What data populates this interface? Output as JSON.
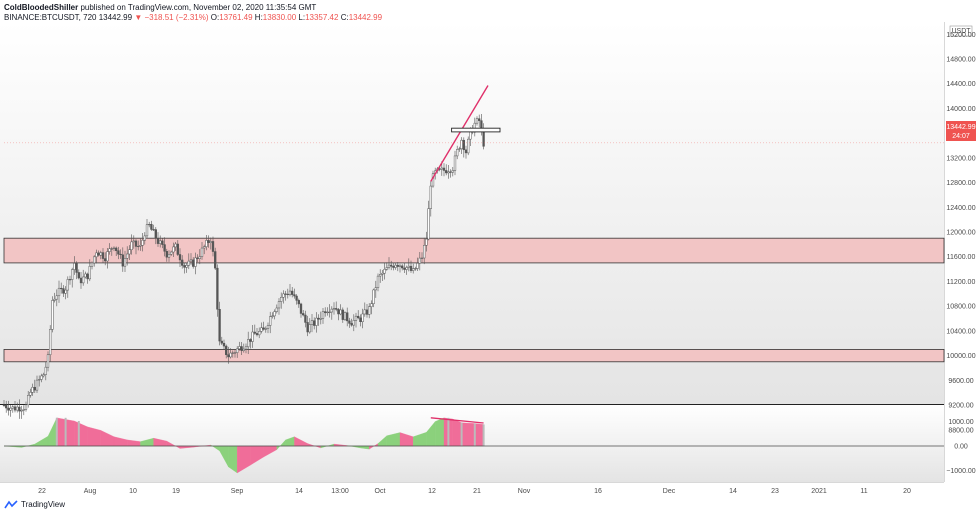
{
  "header": {
    "author": "ColdBloodedShiller",
    "published": " published on TradingView.com, November 02, 2020 11:35:54 GMT",
    "symbol": "BINANCE:BTCUSDT, 720",
    "last": "13442.99",
    "change": "▼ −318.51 (−2.31%)",
    "o_label": "O:",
    "o_value": "13761.49",
    "h_label": "H:",
    "h_value": "13830.00",
    "l_label": "L:",
    "l_value": "13357.42",
    "c_label": "C:",
    "c_value": "13442.99"
  },
  "footer": {
    "brand": "TradingView"
  },
  "colors": {
    "candle": "#555555",
    "zone_fill": "#f2c5c5",
    "zone_border": "#333333",
    "trendline": "#e0306a",
    "osc_green": "#8bd17c",
    "osc_pink": "#f06d99",
    "price_tag_bg": "#ef5350"
  },
  "chart_data": [
    {
      "type": "candlestick",
      "symbol": "BINANCE:BTCUSDT",
      "interval": "720",
      "y_unit": "USDT",
      "y_ticks": [
        "15200.00",
        "14800.00",
        "14400.00",
        "14000.00",
        "13600.00",
        "13200.00",
        "12800.00",
        "12400.00",
        "12000.00",
        "11600.00",
        "11200.00",
        "10800.00",
        "10400.00",
        "10000.00",
        "9600.00",
        "9200.00",
        "8800.00"
      ],
      "x_ticks": [
        "22",
        "Aug",
        "10",
        "19",
        "Sep",
        "14",
        "13:00",
        "Oct",
        "12",
        "21",
        "Nov",
        "16",
        "Dec",
        "14",
        "23",
        "2021",
        "11",
        "20"
      ],
      "ylim": [
        8800,
        15200
      ],
      "last_price_label": "13442.99",
      "countdown_label": "24:07",
      "close_path": [
        [
          "2020-07-16",
          9200
        ],
        [
          "2020-07-18",
          9150
        ],
        [
          "2020-07-21",
          9180
        ],
        [
          "2020-07-22",
          9400
        ],
        [
          "2020-07-24",
          9600
        ],
        [
          "2020-07-25",
          9700
        ],
        [
          "2020-07-26",
          9950
        ],
        [
          "2020-07-27",
          10900
        ],
        [
          "2020-07-28",
          11000
        ],
        [
          "2020-07-30",
          11100
        ],
        [
          "2020-08-01",
          11500
        ],
        [
          "2020-08-02",
          11200
        ],
        [
          "2020-08-04",
          11300
        ],
        [
          "2020-08-06",
          11700
        ],
        [
          "2020-08-08",
          11600
        ],
        [
          "2020-08-10",
          11800
        ],
        [
          "2020-08-12",
          11500
        ],
        [
          "2020-08-14",
          11800
        ],
        [
          "2020-08-16",
          11750
        ],
        [
          "2020-08-17",
          12000
        ],
        [
          "2020-08-18",
          12100
        ],
        [
          "2020-08-20",
          11850
        ],
        [
          "2020-08-22",
          11650
        ],
        [
          "2020-08-24",
          11750
        ],
        [
          "2020-08-26",
          11450
        ],
        [
          "2020-08-28",
          11500
        ],
        [
          "2020-08-30",
          11700
        ],
        [
          "2020-09-01",
          11900
        ],
        [
          "2020-09-02",
          11400
        ],
        [
          "2020-09-03",
          10200
        ],
        [
          "2020-09-05",
          10000
        ],
        [
          "2020-09-07",
          10100
        ],
        [
          "2020-09-09",
          10200
        ],
        [
          "2020-09-11",
          10350
        ],
        [
          "2020-09-13",
          10400
        ],
        [
          "2020-09-15",
          10700
        ],
        [
          "2020-09-17",
          10950
        ],
        [
          "2020-09-19",
          11050
        ],
        [
          "2020-09-21",
          10800
        ],
        [
          "2020-09-23",
          10450
        ],
        [
          "2020-09-25",
          10550
        ],
        [
          "2020-09-27",
          10750
        ],
        [
          "2020-09-29",
          10800
        ],
        [
          "2020-10-01",
          10650
        ],
        [
          "2020-10-03",
          10550
        ],
        [
          "2020-10-05",
          10600
        ],
        [
          "2020-10-07",
          10750
        ],
        [
          "2020-10-09",
          11250
        ],
        [
          "2020-10-11",
          11400
        ],
        [
          "2020-10-13",
          11500
        ],
        [
          "2020-10-15",
          11450
        ],
        [
          "2020-10-17",
          11350
        ],
        [
          "2020-10-19",
          11600
        ],
        [
          "2020-10-20",
          11900
        ],
        [
          "2020-10-21",
          12800
        ],
        [
          "2020-10-22",
          12950
        ],
        [
          "2020-10-24",
          13000
        ],
        [
          "2020-10-26",
          13050
        ],
        [
          "2020-10-27",
          13300
        ],
        [
          "2020-10-28",
          13500
        ],
        [
          "2020-10-29",
          13300
        ],
        [
          "2020-10-30",
          13600
        ],
        [
          "2020-10-31",
          13750
        ],
        [
          "2020-11-01",
          13800
        ],
        [
          "2020-11-02",
          13443
        ]
      ],
      "annotations": {
        "support_zones": [
          {
            "from": 11500,
            "to": 11900
          },
          {
            "from": 9900,
            "to": 10100
          }
        ],
        "trendline": {
          "from": [
            "2020-10-21",
            12820
          ],
          "to": [
            "2020-11-03",
            14370
          ]
        },
        "resistance_box": {
          "from_date": "2020-10-28",
          "to_date": "2020-11-03",
          "low": 13620,
          "high": 13680
        }
      }
    },
    {
      "type": "area",
      "name": "oscillator",
      "y_ticks": [
        "1000.00",
        "0.00",
        "−1000.00"
      ],
      "ylim": [
        -1400,
        1200
      ],
      "values": [
        [
          "2020-07-16",
          0
        ],
        [
          "2020-07-20",
          -60
        ],
        [
          "2020-07-23",
          80
        ],
        [
          "2020-07-26",
          400
        ],
        [
          "2020-07-28",
          1150
        ],
        [
          "2020-08-01",
          1020
        ],
        [
          "2020-08-04",
          780
        ],
        [
          "2020-08-07",
          640
        ],
        [
          "2020-08-10",
          380
        ],
        [
          "2020-08-13",
          250
        ],
        [
          "2020-08-16",
          180
        ],
        [
          "2020-08-19",
          320
        ],
        [
          "2020-08-22",
          200
        ],
        [
          "2020-08-25",
          -100
        ],
        [
          "2020-08-28",
          -50
        ],
        [
          "2020-09-01",
          40
        ],
        [
          "2020-09-03",
          -200
        ],
        [
          "2020-09-05",
          -850
        ],
        [
          "2020-09-07",
          -1100
        ],
        [
          "2020-09-10",
          -780
        ],
        [
          "2020-09-13",
          -450
        ],
        [
          "2020-09-16",
          -150
        ],
        [
          "2020-09-18",
          250
        ],
        [
          "2020-09-20",
          380
        ],
        [
          "2020-09-23",
          100
        ],
        [
          "2020-09-26",
          -80
        ],
        [
          "2020-09-29",
          80
        ],
        [
          "2020-10-02",
          20
        ],
        [
          "2020-10-05",
          -80
        ],
        [
          "2020-10-07",
          -130
        ],
        [
          "2020-10-09",
          100
        ],
        [
          "2020-10-11",
          420
        ],
        [
          "2020-10-14",
          550
        ],
        [
          "2020-10-17",
          380
        ],
        [
          "2020-10-20",
          560
        ],
        [
          "2020-10-22",
          1000
        ],
        [
          "2020-10-24",
          1150
        ],
        [
          "2020-10-26",
          1100
        ],
        [
          "2020-10-28",
          950
        ],
        [
          "2020-10-31",
          920
        ],
        [
          "2020-11-02",
          880
        ]
      ],
      "trendline": {
        "from": [
          "2020-10-21",
          1150
        ],
        "to": [
          "2020-11-02",
          940
        ]
      }
    }
  ]
}
